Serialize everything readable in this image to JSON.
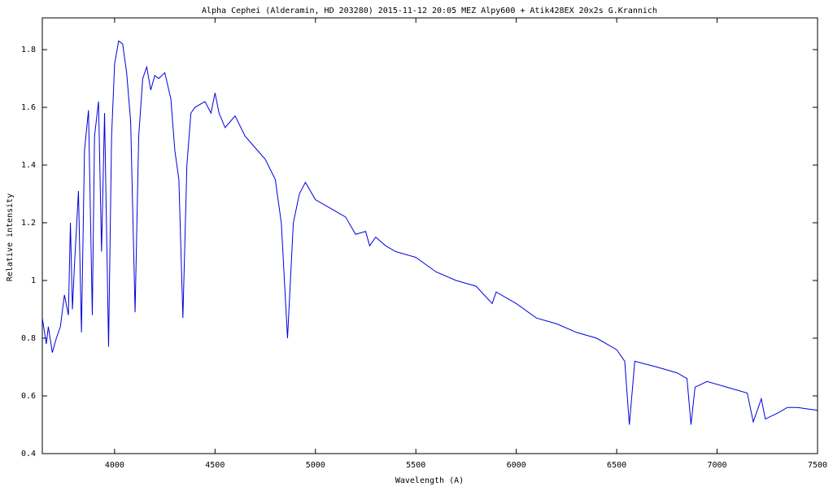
{
  "chart_data": {
    "type": "line",
    "title": "Alpha Cephei  (Alderamin, HD 203280)  2015-11-12 20:05 MEZ  Alpy600 + Atik428EX  20x2s   G.Krannich",
    "x_label": "Wavelength (A)",
    "y_label": "Relative intensity",
    "xlim": [
      3640,
      7500
    ],
    "ylim": [
      0.4,
      1.91
    ],
    "xticks": [
      4000,
      4500,
      5000,
      5500,
      6000,
      6500,
      7000,
      7500
    ],
    "yticks": [
      0.4,
      0.6,
      0.8,
      1,
      1.2,
      1.4,
      1.6,
      1.8
    ],
    "grid": false,
    "series": [
      {
        "color": "#0000dd",
        "x": [
          3640,
          3660,
          3670,
          3690,
          3710,
          3730,
          3750,
          3770,
          3780,
          3790,
          3800,
          3820,
          3835,
          3850,
          3870,
          3889,
          3900,
          3920,
          3935,
          3950,
          3970,
          3985,
          4000,
          4020,
          4040,
          4060,
          4080,
          4102,
          4120,
          4140,
          4160,
          4180,
          4200,
          4220,
          4250,
          4280,
          4300,
          4320,
          4340,
          4360,
          4380,
          4400,
          4450,
          4480,
          4500,
          4520,
          4550,
          4600,
          4650,
          4700,
          4750,
          4800,
          4830,
          4861,
          4890,
          4920,
          4950,
          5000,
          5050,
          5100,
          5150,
          5200,
          5250,
          5270,
          5300,
          5350,
          5400,
          5500,
          5600,
          5700,
          5800,
          5880,
          5900,
          6000,
          6100,
          6200,
          6300,
          6400,
          6500,
          6540,
          6563,
          6590,
          6700,
          6800,
          6850,
          6870,
          6890,
          6950,
          7050,
          7150,
          7180,
          7200,
          7220,
          7240,
          7300,
          7350,
          7400,
          7500
        ],
        "values": [
          0.87,
          0.78,
          0.84,
          0.75,
          0.8,
          0.84,
          0.95,
          0.88,
          1.2,
          0.9,
          1.05,
          1.31,
          0.82,
          1.45,
          1.59,
          0.88,
          1.5,
          1.62,
          1.1,
          1.58,
          0.77,
          1.5,
          1.75,
          1.83,
          1.82,
          1.72,
          1.55,
          0.89,
          1.5,
          1.7,
          1.74,
          1.66,
          1.71,
          1.7,
          1.72,
          1.63,
          1.45,
          1.35,
          0.87,
          1.4,
          1.58,
          1.6,
          1.62,
          1.58,
          1.65,
          1.58,
          1.53,
          1.57,
          1.5,
          1.46,
          1.42,
          1.35,
          1.2,
          0.8,
          1.2,
          1.3,
          1.34,
          1.28,
          1.26,
          1.24,
          1.22,
          1.16,
          1.17,
          1.12,
          1.15,
          1.12,
          1.1,
          1.08,
          1.03,
          1,
          0.98,
          0.92,
          0.96,
          0.92,
          0.87,
          0.85,
          0.82,
          0.8,
          0.76,
          0.72,
          0.5,
          0.72,
          0.7,
          0.68,
          0.66,
          0.5,
          0.63,
          0.65,
          0.63,
          0.61,
          0.51,
          0.55,
          0.59,
          0.52,
          0.54,
          0.56,
          0.56,
          0.55
        ]
      }
    ]
  }
}
